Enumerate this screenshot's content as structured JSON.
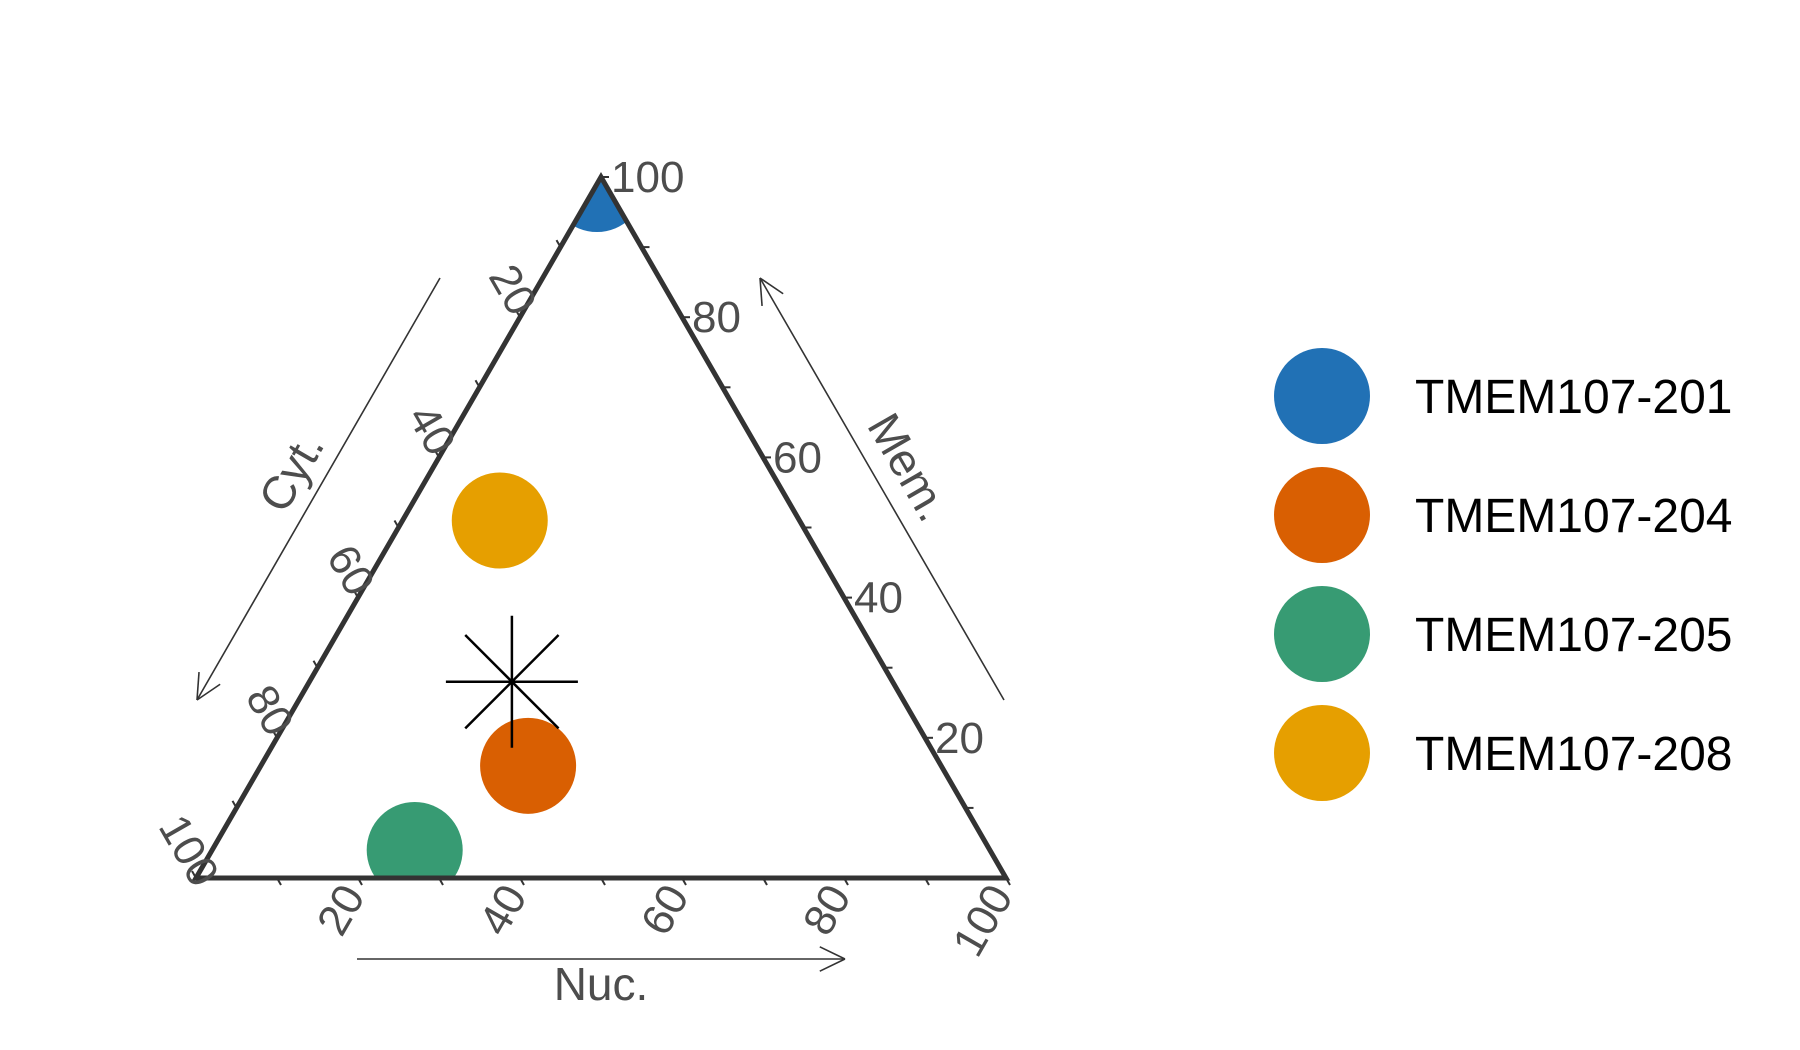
{
  "chart_data": {
    "type": "scatter",
    "subtype": "ternary",
    "axes": {
      "nuc": {
        "label": "Nuc.",
        "ticks": [
          "20",
          "40",
          "60",
          "80",
          "100"
        ]
      },
      "mem": {
        "label": "Mem.",
        "ticks": [
          "20",
          "40",
          "60",
          "80",
          "100"
        ]
      },
      "cyt": {
        "label": "Cyt.",
        "ticks": [
          "20",
          "40",
          "60",
          "80",
          "100"
        ]
      }
    },
    "range": [
      0,
      100
    ],
    "grid": false,
    "legend_position": "right",
    "series": [
      {
        "name": "TMEM107-201",
        "color": "#2171b5",
        "nuc": 0,
        "mem": 99,
        "cyt": 1
      },
      {
        "name": "TMEM107-204",
        "color": "#d95f02",
        "nuc": 33,
        "mem": 16,
        "cyt": 51
      },
      {
        "name": "TMEM107-205",
        "color": "#379b73",
        "nuc": 25,
        "mem": 4,
        "cyt": 71
      },
      {
        "name": "TMEM107-208",
        "color": "#e69f00",
        "nuc": 12,
        "mem": 51,
        "cyt": 37
      }
    ],
    "marker": {
      "symbol": "asterisk",
      "nuc": 25,
      "mem": 28,
      "cyt": 47
    }
  }
}
